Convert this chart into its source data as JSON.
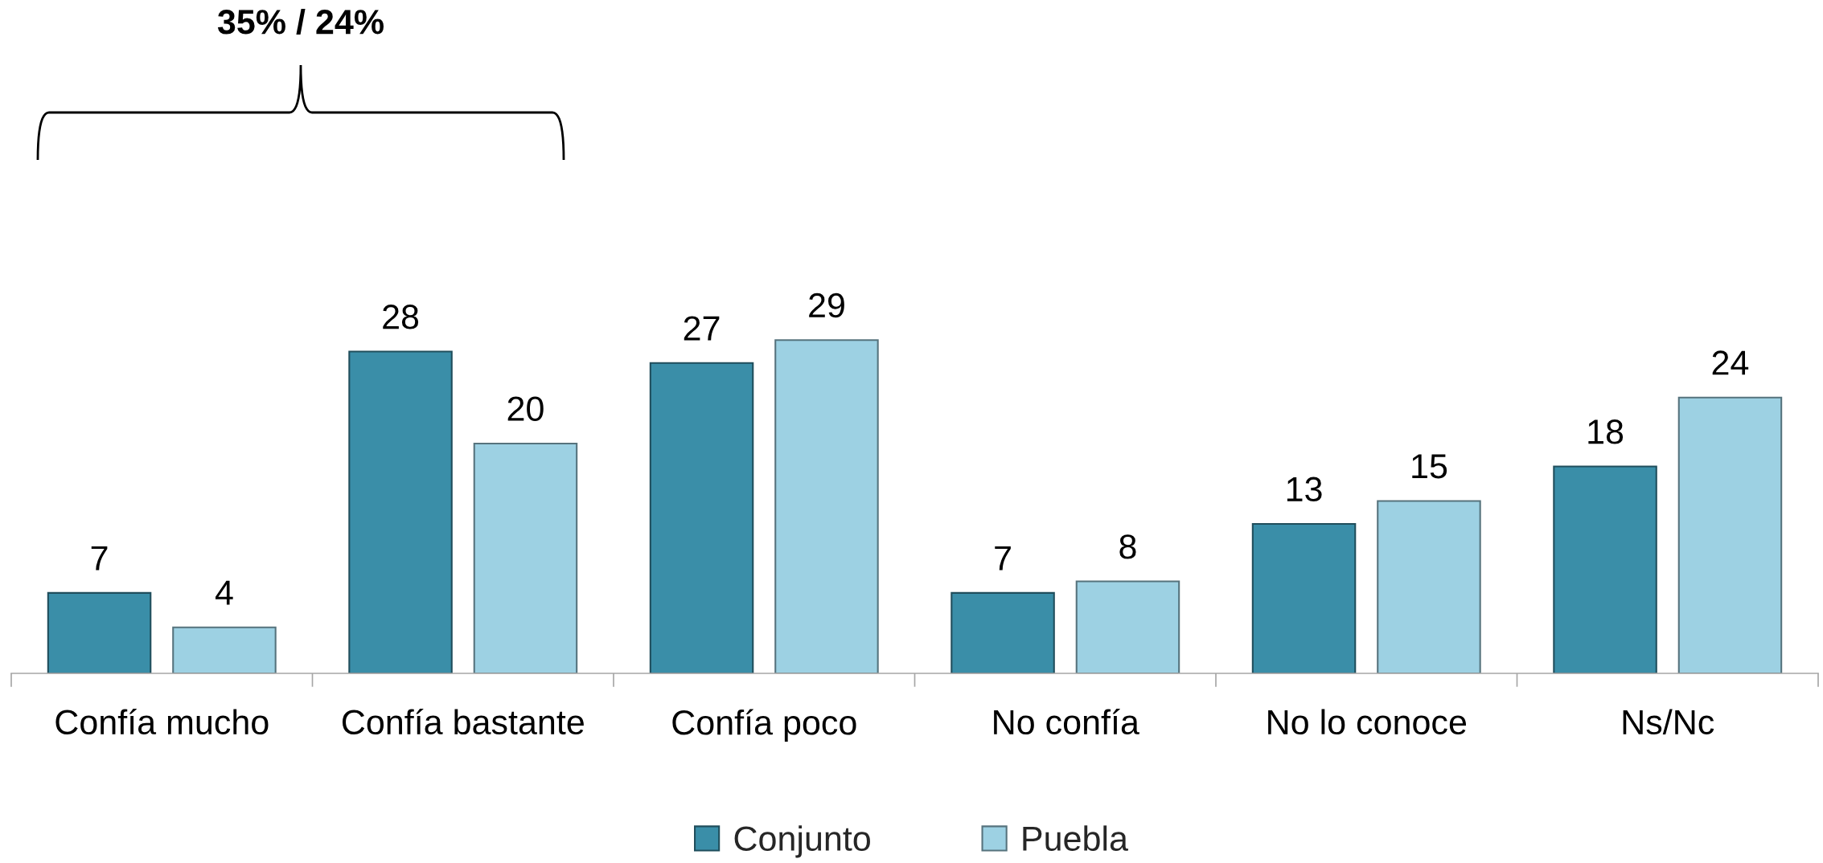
{
  "chart_data": {
    "type": "bar",
    "categories": [
      "Confía mucho",
      "Confía bastante",
      "Confía poco",
      "No confía",
      "No lo conoce",
      "Ns/Nc"
    ],
    "series": [
      {
        "name": "Conjunto",
        "color": "#3a8ea8",
        "values": [
          7,
          28,
          27,
          7,
          13,
          18
        ]
      },
      {
        "name": "Puebla",
        "color": "#9dd1e3",
        "values": [
          4,
          20,
          29,
          8,
          15,
          24
        ]
      }
    ],
    "data_labels": true,
    "legend": "bottom",
    "annotations": [
      "35% / 24%"
    ]
  }
}
